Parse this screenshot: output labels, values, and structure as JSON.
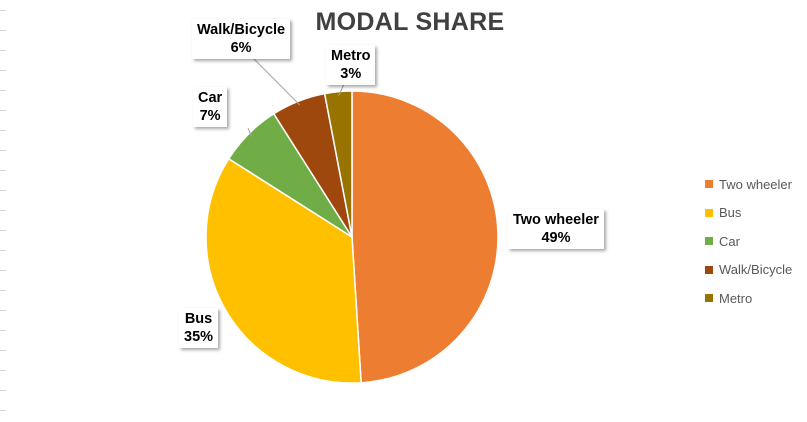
{
  "chart_data": {
    "type": "pie",
    "title": "MODAL SHARE",
    "slices": [
      {
        "name": "Two wheeler",
        "value": 49,
        "label": "49%",
        "color": "#ED7D31"
      },
      {
        "name": "Bus",
        "value": 35,
        "label": "35%",
        "color": "#FFC000"
      },
      {
        "name": "Car",
        "value": 7,
        "label": "7%",
        "color": "#70AD47"
      },
      {
        "name": "Walk/Bicycle",
        "value": 6,
        "label": "6%",
        "color": "#9E480E"
      },
      {
        "name": "Metro",
        "value": 3,
        "label": "3%",
        "color": "#997300"
      }
    ],
    "legend_position": "right"
  }
}
